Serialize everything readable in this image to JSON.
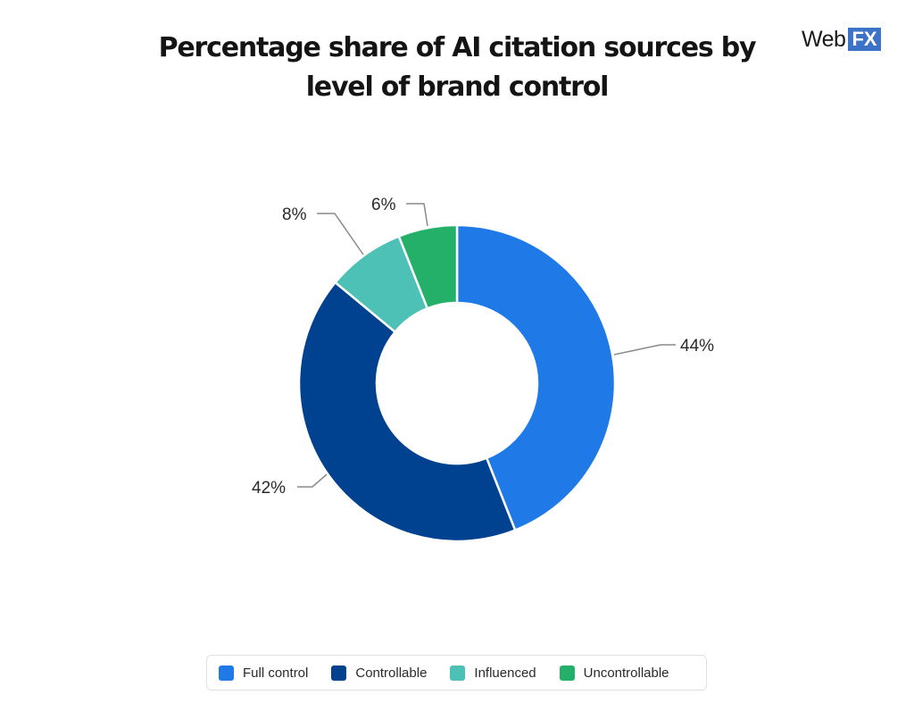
{
  "header": {
    "title_line1": "Percentage share of AI citation sources by",
    "title_line2": "level of brand control",
    "logo_text": "Web",
    "logo_badge": "FX"
  },
  "legend": {
    "items": [
      {
        "label": "Full control",
        "color": "#1f7ae8"
      },
      {
        "label": "Controllable",
        "color": "#004290"
      },
      {
        "label": "Influenced",
        "color": "#4ec1b7"
      },
      {
        "label": "Uncontrollable",
        "color": "#25b06a"
      }
    ]
  },
  "labels": {
    "full_control": "44%",
    "controllable": "42%",
    "influenced": "8%",
    "uncontrollable": "6%"
  },
  "chart_data": {
    "type": "pie",
    "variant": "donut",
    "title": "Percentage share of AI citation sources by level of brand control",
    "categories": [
      "Full control",
      "Controllable",
      "Influenced",
      "Uncontrollable"
    ],
    "values": [
      44,
      42,
      8,
      6
    ],
    "unit": "%",
    "colors": [
      "#1f7ae8",
      "#004290",
      "#4ec1b7",
      "#25b06a"
    ],
    "data_labels": [
      "44%",
      "42%",
      "8%",
      "6%"
    ],
    "legend_position": "bottom",
    "start_angle": "12 o'clock, clockwise"
  }
}
